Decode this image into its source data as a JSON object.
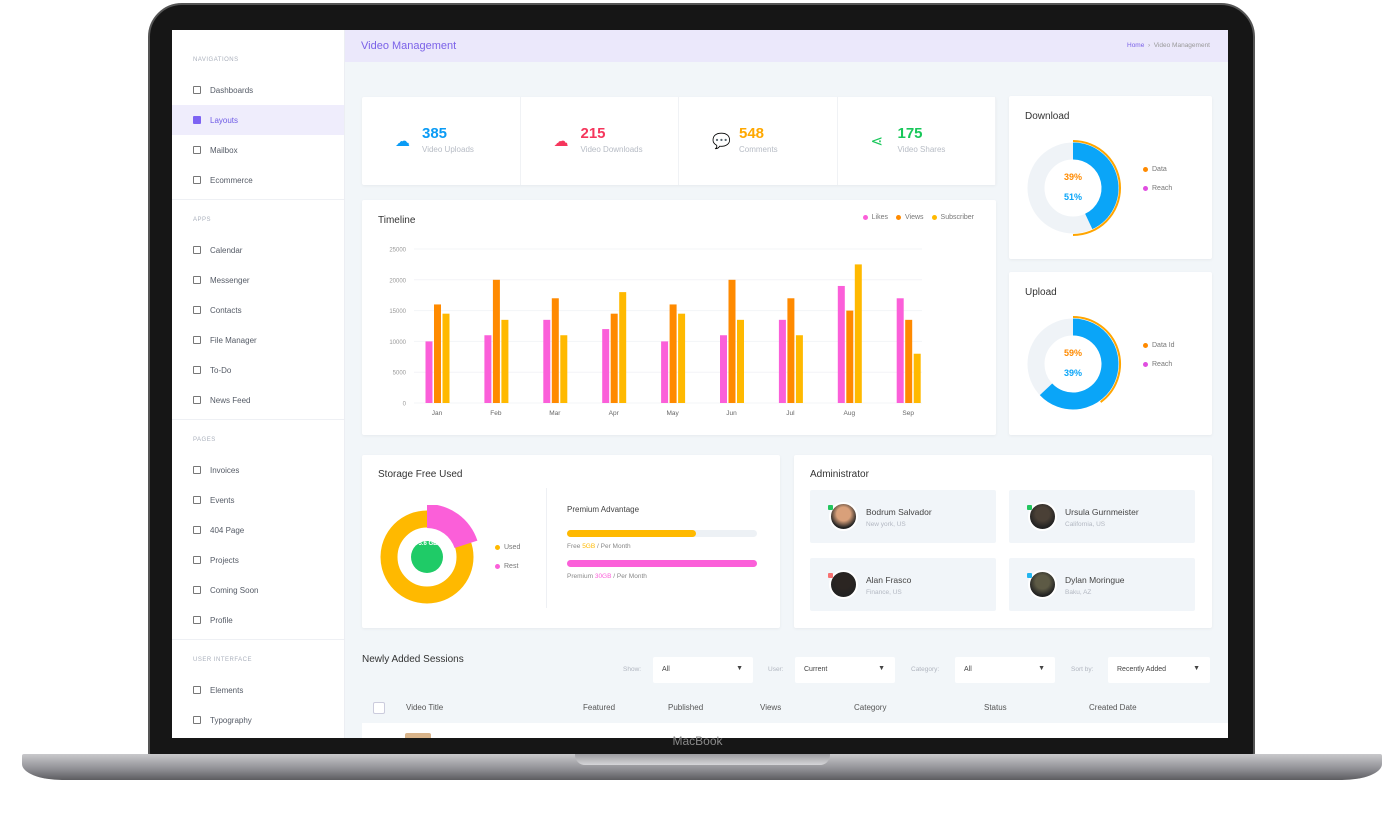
{
  "device": {
    "label": "MacBook"
  },
  "sidebar": {
    "sections": [
      {
        "label": "Navigations",
        "items": [
          "Dashboards",
          "Layouts",
          "Mailbox",
          "Ecommerce"
        ]
      },
      {
        "label": "Apps",
        "items": [
          "Calendar",
          "Messenger",
          "Contacts",
          "File Manager",
          "To-Do",
          "News Feed"
        ]
      },
      {
        "label": "Pages",
        "items": [
          "Invoices",
          "Events",
          "404 Page",
          "Projects",
          "Coming Soon",
          "Profile"
        ]
      },
      {
        "label": "User Interface",
        "items": [
          "Elements",
          "Typography"
        ]
      }
    ],
    "active": "Layouts"
  },
  "header": {
    "title": "Video Management",
    "breadcrumb": [
      "Home",
      "Video Management"
    ]
  },
  "stats": [
    {
      "value": "385",
      "label": "Video Uploads",
      "color": "#0a9bf5",
      "icon": "cloud-upload-icon"
    },
    {
      "value": "215",
      "label": "Video Downloads",
      "color": "#f5365c",
      "icon": "cloud-download-icon"
    },
    {
      "value": "548",
      "label": "Comments",
      "color": "#ffa800",
      "icon": "comments-icon"
    },
    {
      "value": "175",
      "label": "Video Shares",
      "color": "#18c75a",
      "icon": "share-icon"
    }
  ],
  "chart_data": {
    "type": "bar",
    "title": "Timeline",
    "categories": [
      "Jan",
      "Feb",
      "Mar",
      "Apr",
      "May",
      "Jun",
      "Jul",
      "Aug",
      "Sep"
    ],
    "ylim": [
      0,
      25000
    ],
    "yticks": [
      0,
      5000,
      10000,
      15000,
      20000,
      25000
    ],
    "grid": true,
    "legend": "top-right",
    "series": [
      {
        "name": "Likes",
        "color": "#fb5fd9",
        "values": [
          10000,
          11000,
          13500,
          12000,
          10000,
          11000,
          13500,
          19000,
          17000
        ]
      },
      {
        "name": "Views",
        "color": "#ff8a00",
        "values": [
          16000,
          20000,
          17000,
          14500,
          16000,
          20000,
          17000,
          15000,
          13500
        ]
      },
      {
        "name": "Subscriber",
        "color": "#ffb900",
        "values": [
          14500,
          13500,
          11000,
          18000,
          14500,
          13500,
          11000,
          22500,
          8000
        ]
      }
    ]
  },
  "download": {
    "title": "Download",
    "center": [
      "39%",
      "51%"
    ],
    "legend": [
      {
        "label": "Data",
        "color": "#ff8a00"
      },
      {
        "label": "Reach",
        "color": "#e04ee0"
      }
    ],
    "inner_fill": 0.43,
    "outer_fill": 0.5
  },
  "upload": {
    "title": "Upload",
    "center": [
      "59%",
      "39%"
    ],
    "legend": [
      {
        "label": "Data Id",
        "color": "#ff8a00"
      },
      {
        "label": "Reach",
        "color": "#e04ee0"
      }
    ],
    "inner_fill": 0.63,
    "outer_fill": 0.4
  },
  "storage": {
    "title": "Storage Free Used",
    "center": "5.6 GB",
    "rest_fraction": 0.2,
    "legend": [
      {
        "label": "Used",
        "color": "#ffb900"
      },
      {
        "label": "Rest",
        "color": "#fb5fd9"
      }
    ],
    "premium": {
      "title": "Premium Advantage",
      "free": {
        "prefix": "Free",
        "amount": "5GB",
        "suffix": "/ Per Month",
        "progress": 0.68
      },
      "premium": {
        "prefix": "Premium",
        "amount": "30GB",
        "suffix": "/ Per Month",
        "progress": 1.0
      }
    }
  },
  "admins": {
    "title": "Administrator",
    "people": [
      {
        "name": "Bodrum Salvador",
        "location": "New york, US",
        "status": "#22c55e"
      },
      {
        "name": "Ursula Gurnmeister",
        "location": "California, US",
        "status": "#22c55e"
      },
      {
        "name": "Alan Frasco",
        "location": "Finance, US",
        "status": "#f87171"
      },
      {
        "name": "Dylan Moringue",
        "location": "Baku, AZ",
        "status": "#22b5f0"
      }
    ]
  },
  "sessions": {
    "title": "Newly Added Sessions",
    "filters": [
      {
        "label": "Show:",
        "value": "All"
      },
      {
        "label": "User:",
        "value": "Current"
      },
      {
        "label": "Category:",
        "value": "All"
      },
      {
        "label": "Sort by:",
        "value": "Recently Added"
      }
    ],
    "columns": [
      "Video Title",
      "Featured",
      "Published",
      "Views",
      "Category",
      "Status",
      "Created Date"
    ]
  }
}
